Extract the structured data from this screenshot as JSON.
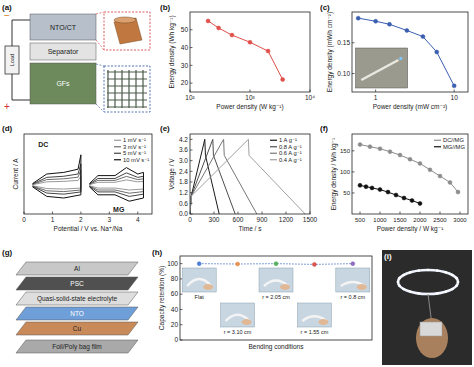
{
  "panel_labels": [
    "(a)",
    "(b)",
    "(c)",
    "(d)",
    "(e)",
    "(f)",
    "(g)",
    "(h)",
    "(i)"
  ],
  "diagram_a": {
    "layers": [
      "NTO/CT",
      "Separator",
      "GFs"
    ],
    "load": "Load",
    "minus": "−",
    "plus": "+"
  },
  "chart_data": [
    {
      "type": "line",
      "x_label": "Power density (W kg⁻¹)",
      "y_label": "Energy density (Wh kg⁻¹)",
      "log": "x",
      "x": [
        200,
        300,
        500,
        1000,
        2000,
        3500
      ],
      "values": [
        55,
        51,
        47,
        43,
        38,
        22
      ],
      "color": "#e0504a",
      "marker": "circle",
      "xlim": [
        100,
        10000
      ],
      "xticks": [
        {
          "value": 100,
          "label": "10²"
        },
        {
          "value": 1000,
          "label": "10³"
        },
        {
          "value": 10000,
          "label": "10⁴"
        }
      ],
      "ylim": [
        15,
        60
      ],
      "yticks": [
        20,
        30,
        40,
        50
      ]
    },
    {
      "type": "line",
      "x_label": "Power density (mW cm⁻²)",
      "y_label": "Energy density (mWh cm⁻²)",
      "log": "x",
      "x": [
        0.6,
        1,
        1.5,
        2.5,
        4,
        6,
        10
      ],
      "values": [
        0.19,
        0.185,
        0.18,
        0.17,
        0.16,
        0.135,
        0.08
      ],
      "color": "#3a5fb0",
      "marker": "circle",
      "xlim": [
        0.5,
        15
      ],
      "xticks": [
        1,
        10
      ],
      "ylim": [
        0.07,
        0.2
      ],
      "yticks": [
        {
          "value": 0.1,
          "label": "0.10"
        },
        0.15
      ]
    },
    {
      "type": "line",
      "x_label": "Potential / V vs. Na⁺/Na",
      "y_label": "Current / A",
      "annotations": [
        "DC",
        "MG"
      ],
      "legend": "upper right",
      "tick_labels": "x",
      "xlim": [
        0,
        4.5
      ],
      "xticks": [
        0,
        1,
        2,
        3,
        4
      ],
      "ylim": [
        -0.9,
        1.6
      ],
      "yticks": [],
      "series": [
        {
          "name": "1 mV s⁻¹",
          "color": "#9a9a9a",
          "x": [
            0.3,
            0.8,
            1.4,
            1.9,
            2.0,
            2.0,
            1.4,
            0.8,
            0.3,
            null,
            2.3,
            2.6,
            3.2,
            3.6,
            4.0,
            4.2,
            4.2,
            3.7,
            3.2,
            2.6,
            2.3
          ],
          "values": [
            0.015,
            0.105,
            0.12,
            0.15,
            0.285,
            -0.09,
            -0.12,
            -0.105,
            -0.015,
            null,
            0.015,
            0.09,
            0.09,
            0.165,
            0.105,
            0.12,
            -0.12,
            -0.15,
            -0.09,
            -0.09,
            -0.015
          ]
        },
        {
          "name": "3 mV s⁻¹",
          "color": "#6e6e6e",
          "x": [
            0.3,
            0.8,
            1.4,
            1.9,
            2.0,
            2.0,
            1.4,
            0.8,
            0.3,
            null,
            2.3,
            2.6,
            3.2,
            3.6,
            4.0,
            4.2,
            4.2,
            3.7,
            3.2,
            2.6,
            2.3
          ],
          "values": [
            0.025,
            0.175,
            0.2,
            0.25,
            0.475,
            -0.15,
            -0.2,
            -0.175,
            -0.025,
            null,
            0.025,
            0.15,
            0.15,
            0.275,
            0.175,
            0.2,
            -0.2,
            -0.25,
            -0.15,
            -0.15,
            -0.025
          ]
        },
        {
          "name": "5 mV s⁻¹",
          "color": "#444444",
          "x": [
            0.3,
            0.8,
            1.4,
            1.9,
            2.0,
            2.0,
            1.4,
            0.8,
            0.3,
            null,
            2.3,
            2.6,
            3.2,
            3.6,
            4.0,
            4.2,
            4.2,
            3.7,
            3.2,
            2.6,
            2.3
          ],
          "values": [
            0.035,
            0.245,
            0.28,
            0.35,
            0.665,
            -0.21,
            -0.28,
            -0.245,
            -0.035,
            null,
            0.035,
            0.21,
            0.21,
            0.385,
            0.245,
            0.28,
            -0.28,
            -0.35,
            -0.21,
            -0.21,
            -0.035
          ]
        },
        {
          "name": "10 mV s⁻¹",
          "color": "#111111",
          "x": [
            0.3,
            0.8,
            1.4,
            1.9,
            2.0,
            2.0,
            1.4,
            0.8,
            0.3,
            null,
            2.3,
            2.6,
            3.2,
            3.6,
            4.0,
            4.2,
            4.2,
            3.7,
            3.2,
            2.6,
            2.3
          ],
          "values": [
            0.05,
            0.35,
            0.4,
            0.5,
            0.95,
            -0.3,
            -0.4,
            -0.35,
            -0.05,
            null,
            0.05,
            0.3,
            0.3,
            0.55,
            0.35,
            0.4,
            -0.4,
            -0.5,
            -0.3,
            -0.3,
            -0.05
          ]
        }
      ]
    },
    {
      "type": "line",
      "x_label": "Time / s",
      "y_label": "Voltage / V",
      "legend": "upper right",
      "xlim": [
        0,
        1500
      ],
      "xticks": [
        0,
        300,
        600,
        900,
        1200,
        1500
      ],
      "ylim": [
        0,
        4.5
      ],
      "yticks": [
        {
          "value": 0,
          "label": "0.0"
        },
        0.6,
        1.2,
        1.8,
        2.4,
        {
          "value": 3,
          "label": "3.0"
        },
        3.6,
        4.2
      ],
      "series": [
        {
          "name": "1 A g⁻¹",
          "color": "#1a1a1a",
          "x": [
            0,
            15,
            185,
            193,
            365
          ],
          "values": [
            0,
            1,
            4.2,
            3.3,
            0
          ]
        },
        {
          "name": "0.8 A g⁻¹",
          "color": "#4d4d4d",
          "x": [
            0,
            15,
            285,
            293,
            565
          ],
          "values": [
            0,
            1,
            4.2,
            3.3,
            0
          ]
        },
        {
          "name": "0.6 A g⁻¹",
          "color": "#777777",
          "x": [
            0,
            15,
            420,
            428,
            835
          ],
          "values": [
            0,
            1,
            4.2,
            3.3,
            0
          ]
        },
        {
          "name": "0.4 A g⁻¹",
          "color": "#a0a0a0",
          "x": [
            0,
            15,
            730,
            738,
            1440
          ],
          "values": [
            0,
            1,
            4.2,
            3.3,
            0
          ]
        }
      ]
    },
    {
      "type": "line",
      "x_label": "Power density / W kg⁻¹",
      "y_label": "Energy density / Wh kg⁻¹",
      "legend": "upper right",
      "xlim": [
        300,
        3200
      ],
      "xticks": [
        500,
        1000,
        1500,
        2000,
        2500,
        3000
      ],
      "ylim": [
        0,
        190
      ],
      "yticks": [
        50,
        100,
        150
      ],
      "series": [
        {
          "name": "DC//MG",
          "color": "#8c8c8c",
          "marker": "circle",
          "x": [
            500,
            750,
            1000,
            1250,
            1500,
            1750,
            2000,
            2250,
            2500,
            2750,
            2950
          ],
          "values": [
            165,
            160,
            155,
            148,
            140,
            130,
            120,
            105,
            90,
            75,
            52
          ]
        },
        {
          "name": "MG//MG",
          "color": "#111111",
          "marker": "circle",
          "x": [
            500,
            650,
            800,
            1000,
            1200,
            1400,
            1600,
            1800,
            2000
          ],
          "values": [
            68,
            65,
            62,
            58,
            52,
            45,
            38,
            32,
            25
          ]
        }
      ]
    },
    {
      "type": "line",
      "y_label": "Capacity retention (%)",
      "x_label": "Bending conditions",
      "tick_labels": "y",
      "categories": [
        "Flat",
        "r = 3.10 cm",
        "r = 2.05 cm",
        "r = 1.55 cm",
        "r = 0.8 cm"
      ],
      "values": [
        100,
        99.5,
        100,
        99,
        100
      ],
      "color": "#5b7fcf",
      "colors": [
        "#4a7fd4",
        "#e8944f",
        "#55b05a",
        "#d9534f",
        "#8e6bbf"
      ],
      "marker": "circle",
      "line_style": "dotted",
      "ylim": [
        0,
        110
      ],
      "yticks": [
        0,
        20,
        40,
        60,
        80,
        100
      ]
    }
  ],
  "diagram_g": {
    "layers": [
      "Al",
      "PSC",
      "Quasi-solid-state electrolyte",
      "NTO",
      "Cu"
    ],
    "package": "Foil/Poly bag film"
  }
}
